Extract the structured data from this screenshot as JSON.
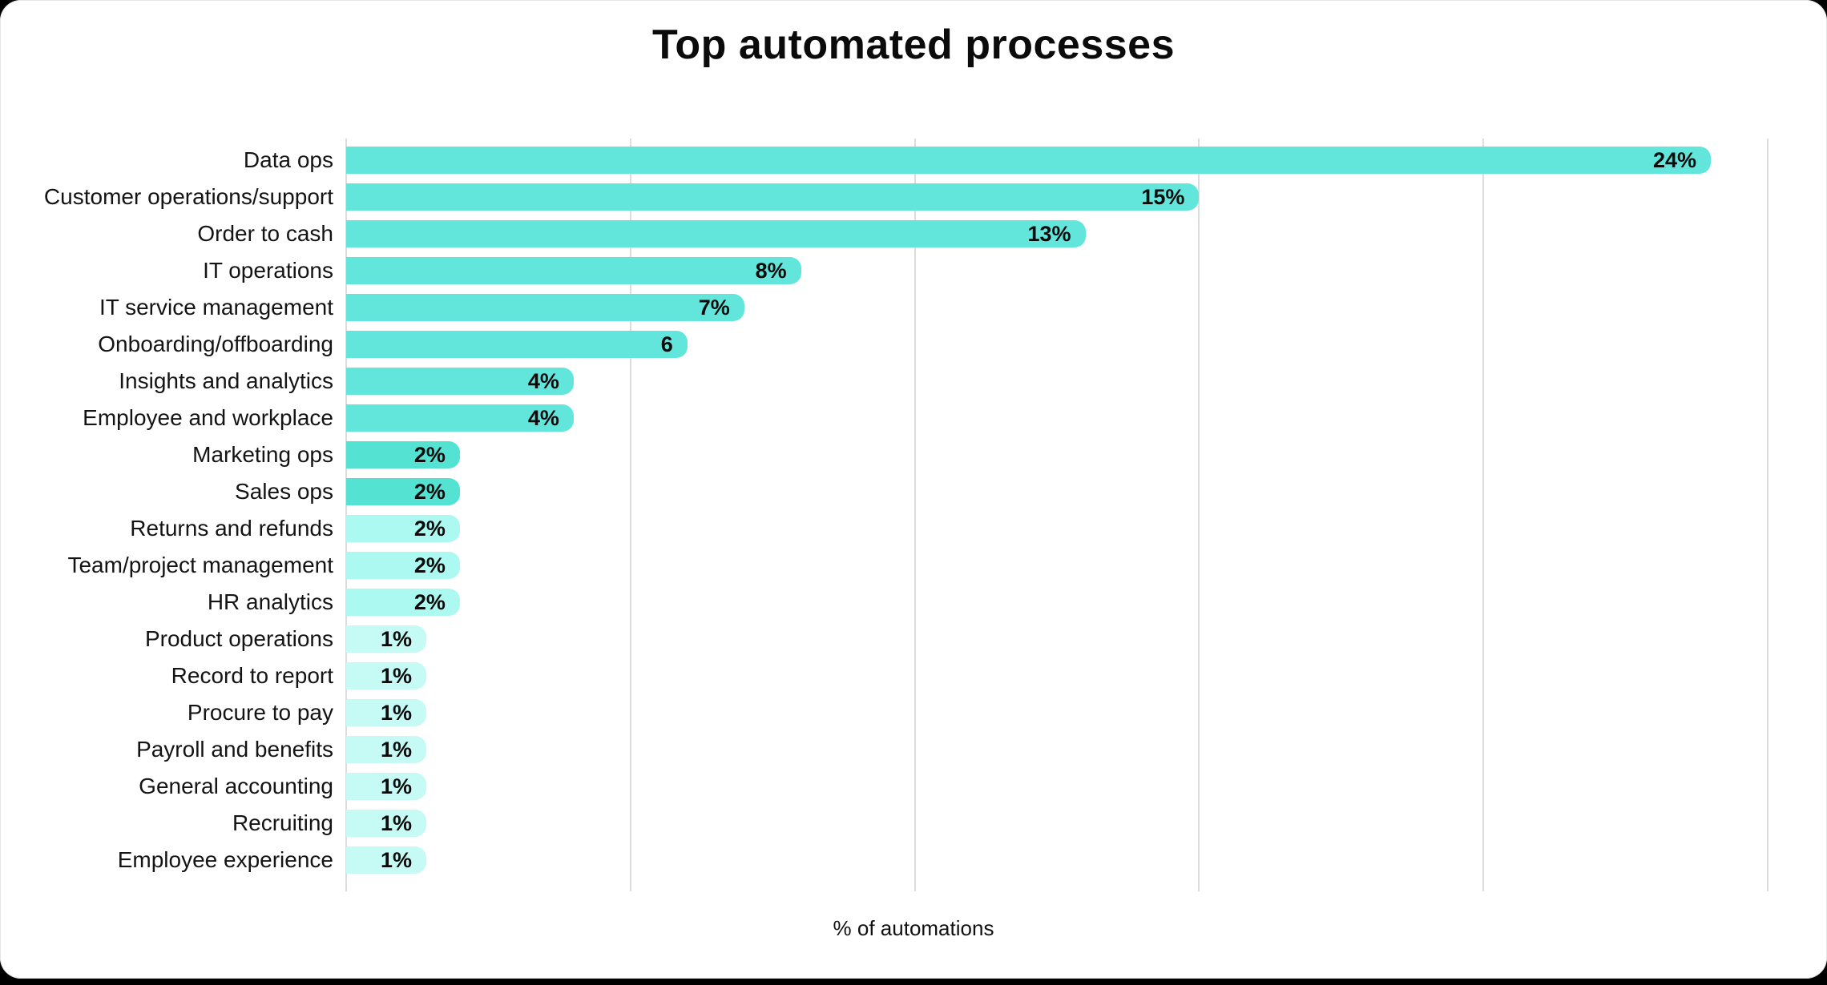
{
  "page": {
    "background_color": "#000000",
    "card_color": "#ffffff"
  },
  "chart_data": {
    "type": "bar",
    "orientation": "horizontal",
    "title": "Top automated processes",
    "xlabel": "% of automations",
    "ylabel": "",
    "xlim": [
      0,
      26
    ],
    "gridlines": [
      0,
      5,
      10,
      15,
      20,
      25
    ],
    "grid_color": "#dcdcdc",
    "legend": "none",
    "categories": [
      "Data ops",
      "Customer operations/support",
      "Order to cash",
      "IT operations",
      "IT service management",
      "Onboarding/offboarding",
      "Insights and analytics",
      "Employee and workplace",
      "Marketing ops",
      "Sales ops",
      "Returns and refunds",
      "Team/project management",
      "HR analytics",
      "Product operations",
      "Record to report",
      "Procure to pay",
      "Payroll and benefits",
      "General accounting",
      "Recruiting",
      "Employee experience"
    ],
    "values": [
      24,
      15,
      13,
      8,
      7,
      6,
      4,
      4,
      2,
      2,
      2,
      2,
      2,
      1,
      1,
      1,
      1,
      1,
      1,
      1
    ],
    "value_labels": [
      "24%",
      "15%",
      "13%",
      "8%",
      "7%",
      "6",
      "4%",
      "4%",
      "2%",
      "2%",
      "2%",
      "2%",
      "2%",
      "1%",
      "1%",
      "1%",
      "1%",
      "1%",
      "1%",
      "1%"
    ],
    "bar_colors": [
      "#62e5db",
      "#62e5db",
      "#62e5db",
      "#62e5db",
      "#62e5db",
      "#62e5db",
      "#62e5db",
      "#62e5db",
      "#54e2d2",
      "#54e2d2",
      "#acf9f1",
      "#acf9f1",
      "#acf9f1",
      "#c6faf5",
      "#c6faf5",
      "#c6faf5",
      "#c6faf5",
      "#c6faf5",
      "#c6faf5",
      "#c6faf5"
    ]
  }
}
